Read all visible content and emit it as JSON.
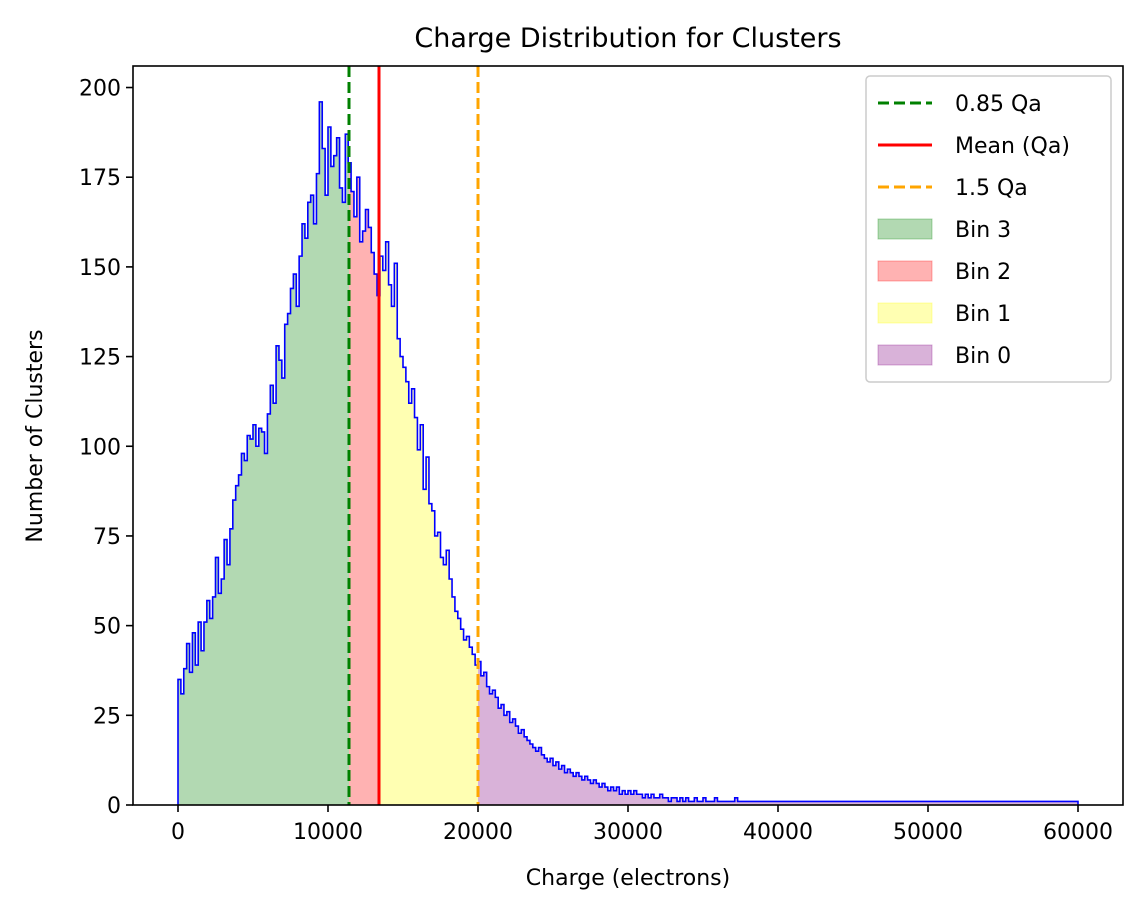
{
  "chart_data": {
    "type": "histogram",
    "title": "Charge Distribution for Clusters",
    "xlabel": "Charge (electrons)",
    "ylabel": "Number of Clusters",
    "xlim": [
      -3000,
      63000
    ],
    "ylim": [
      0,
      206
    ],
    "x_ticks": [
      0,
      10000,
      20000,
      30000,
      40000,
      50000,
      60000
    ],
    "y_ticks": [
      0,
      25,
      50,
      75,
      100,
      125,
      150,
      175,
      200
    ],
    "grid": false,
    "legend_position": "top-right",
    "bins": {
      "start": 0,
      "end": 60000,
      "count": 300
    },
    "histogram_color": "#0000ff",
    "counts": [
      35,
      31,
      38,
      45,
      37,
      48,
      39,
      51,
      43,
      51,
      57,
      52,
      58,
      69,
      59,
      63,
      74,
      67,
      77,
      85,
      89,
      92,
      98,
      96,
      103,
      102,
      106,
      100,
      105,
      104,
      98,
      109,
      117,
      112,
      128,
      124,
      119,
      134,
      137,
      144,
      148,
      139,
      153,
      162,
      158,
      168,
      170,
      162,
      176,
      196,
      183,
      170,
      189,
      178,
      181,
      186,
      172,
      168,
      187,
      179,
      171,
      164,
      175,
      157,
      160,
      166,
      161,
      154,
      148,
      142,
      153,
      149,
      157,
      145,
      139,
      151,
      130,
      125,
      122,
      118,
      112,
      116,
      108,
      99,
      106,
      88,
      97,
      84,
      82,
      75,
      76,
      69,
      67,
      71,
      63,
      58,
      54,
      52,
      49,
      46,
      47,
      44,
      42,
      39,
      40,
      36,
      37,
      33,
      31,
      32,
      30,
      27,
      28,
      25,
      26,
      23,
      24,
      22,
      20,
      21,
      19,
      18,
      17,
      16,
      15,
      16,
      14,
      13,
      12,
      13,
      11,
      12,
      10,
      11,
      9,
      10,
      9,
      8,
      9,
      8,
      7,
      8,
      7,
      6,
      7,
      6,
      5,
      6,
      5,
      4,
      5,
      4,
      5,
      3,
      4,
      3,
      4,
      3,
      4,
      3,
      3,
      2,
      3,
      2,
      3,
      2,
      2,
      3,
      2,
      2,
      1,
      2,
      2,
      1,
      2,
      1,
      2,
      1,
      1,
      2,
      1,
      1,
      2,
      1,
      1,
      1,
      2,
      1,
      1,
      1,
      1,
      1,
      1,
      2,
      1,
      1,
      1,
      1,
      1,
      1,
      1,
      1,
      1,
      1,
      1,
      1,
      1,
      1,
      1,
      1,
      1,
      1,
      1,
      1,
      1,
      1,
      1,
      1,
      1,
      1,
      1,
      1,
      1,
      1,
      1,
      1,
      1,
      1,
      1,
      1,
      1,
      1,
      1,
      1,
      1,
      1,
      1,
      1,
      1,
      1,
      1,
      1,
      1,
      1,
      1,
      1,
      1,
      1,
      1,
      1,
      1,
      1,
      1,
      1,
      1,
      1,
      1,
      1,
      1,
      1,
      1,
      1,
      1,
      1,
      1,
      1,
      1,
      1,
      1,
      1,
      1,
      1,
      1,
      1,
      1,
      1,
      1,
      1,
      1,
      1,
      1,
      1,
      1,
      1,
      1,
      1,
      1,
      1,
      1,
      1,
      1,
      1,
      1,
      1,
      1,
      1,
      1,
      1,
      1,
      1,
      1,
      1,
      1,
      1,
      1,
      1,
      1,
      1,
      1,
      1,
      1,
      1
    ],
    "regions": [
      {
        "name": "Bin 3",
        "from": 0,
        "to": 11400,
        "color": "#008000",
        "alpha": 0.3
      },
      {
        "name": "Bin 2",
        "from": 11400,
        "to": 13400,
        "color": "#ff0000",
        "alpha": 0.3
      },
      {
        "name": "Bin 1",
        "from": 13400,
        "to": 20000,
        "color": "#ffff00",
        "alpha": 0.3
      },
      {
        "name": "Bin 0",
        "from": 20000,
        "to": 60000,
        "color": "#800080",
        "alpha": 0.3
      }
    ],
    "vlines": [
      {
        "name": "0.85 Qa",
        "x": 11400,
        "color": "#008000",
        "style": "dashed"
      },
      {
        "name": "Mean (Qa)",
        "x": 13400,
        "color": "#ff0000",
        "style": "solid"
      },
      {
        "name": "1.5 Qa",
        "x": 20000,
        "color": "#ffa500",
        "style": "dashed"
      }
    ],
    "legend": [
      {
        "label": "0.85 Qa",
        "kind": "line",
        "color": "#008000",
        "style": "dashed"
      },
      {
        "label": "Mean (Qa)",
        "kind": "line",
        "color": "#ff0000",
        "style": "solid"
      },
      {
        "label": "1.5 Qa",
        "kind": "line",
        "color": "#ffa500",
        "style": "dashed"
      },
      {
        "label": "Bin 3",
        "kind": "patch",
        "color": "#008000",
        "alpha": 0.3
      },
      {
        "label": "Bin 2",
        "kind": "patch",
        "color": "#ff0000",
        "alpha": 0.3
      },
      {
        "label": "Bin 1",
        "kind": "patch",
        "color": "#ffff00",
        "alpha": 0.3
      },
      {
        "label": "Bin 0",
        "kind": "patch",
        "color": "#800080",
        "alpha": 0.3
      }
    ]
  }
}
